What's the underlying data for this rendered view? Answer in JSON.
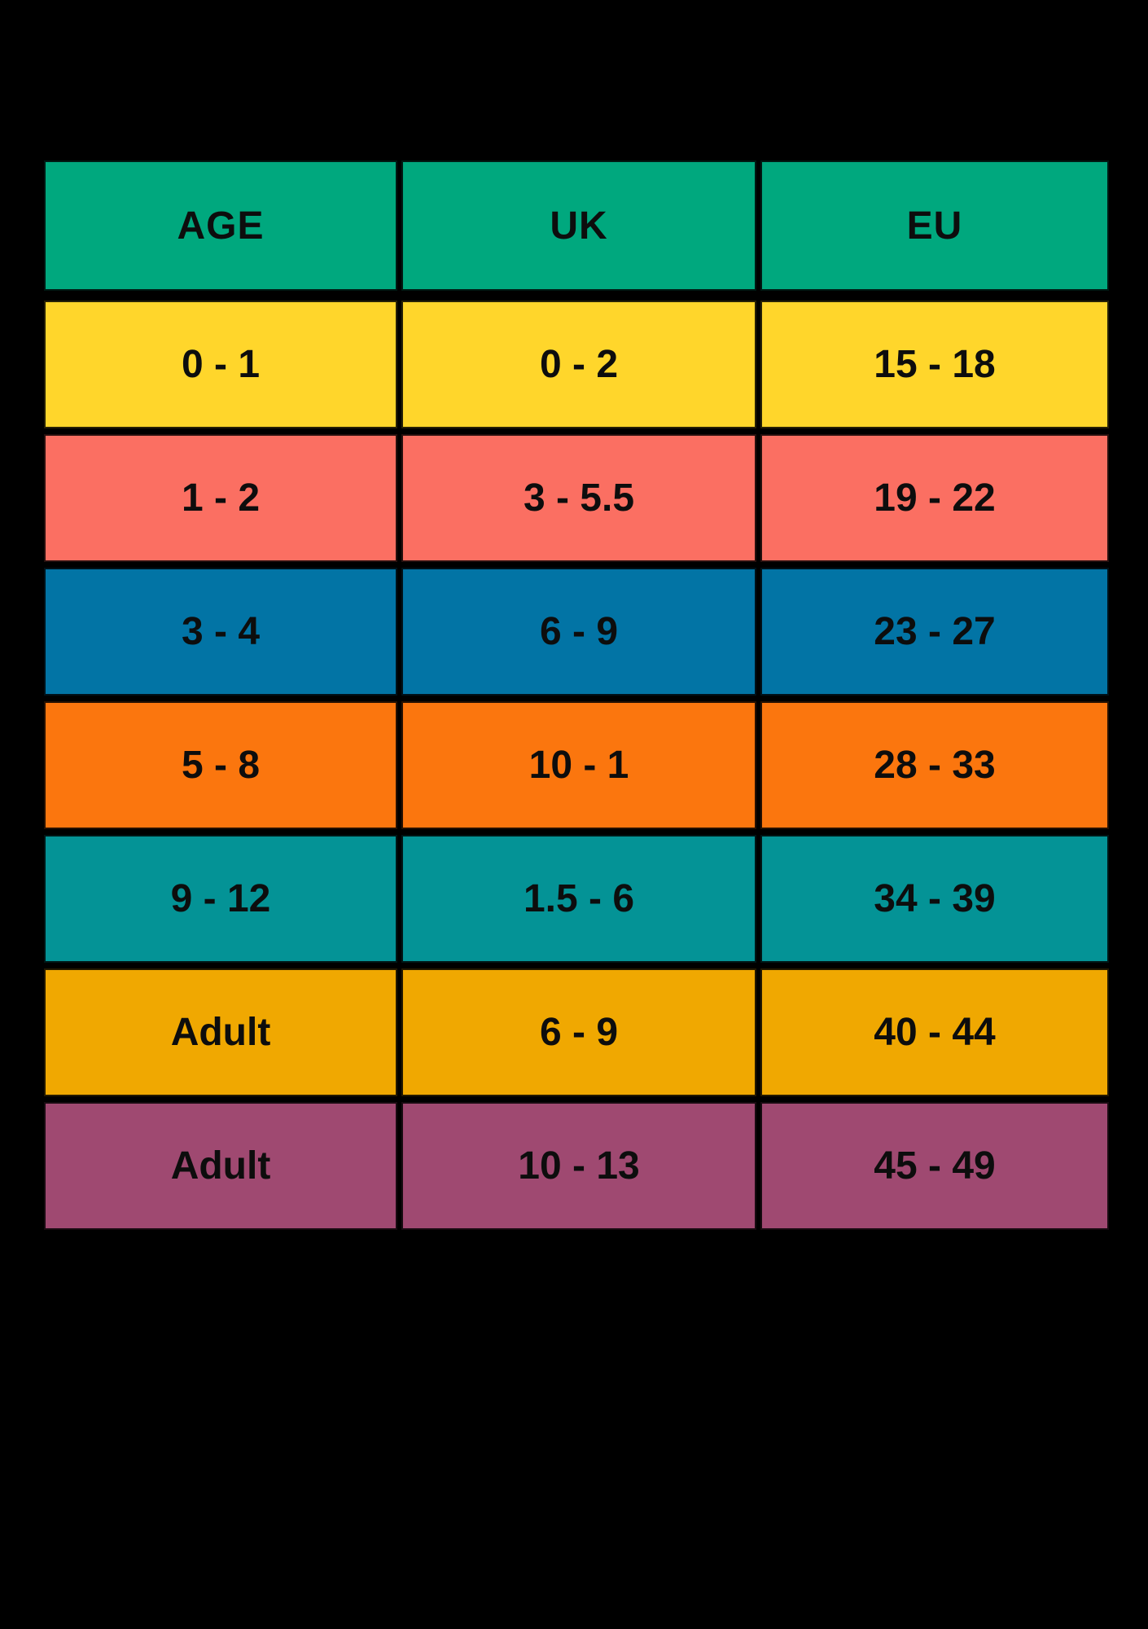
{
  "page": {
    "background_color": "#000000",
    "text_color": "#0d0d0d"
  },
  "chart_data": {
    "type": "table",
    "title": "",
    "columns": [
      "AGE",
      "UK",
      "EU"
    ],
    "rows": [
      [
        "0 - 1",
        "0 - 2",
        "15 - 18"
      ],
      [
        "1 - 2",
        "3 - 5.5",
        "19 - 22"
      ],
      [
        "3 - 4",
        "6 - 9",
        "23 - 27"
      ],
      [
        "5 - 8",
        "10 - 1",
        "28 - 33"
      ],
      [
        "9 - 12",
        "1.5 - 6",
        "34 - 39"
      ],
      [
        "Adult",
        "6 - 9",
        "40 - 44"
      ],
      [
        "Adult",
        "10 - 13",
        "45 - 49"
      ]
    ],
    "header_color": "#00A87E",
    "row_colors": [
      "#FFD62B",
      "#FB6F62",
      "#0274A5",
      "#FB760E",
      "#049396",
      "#F0A801",
      "#9F4971"
    ],
    "grid": "black gaps between all cells",
    "legend_position": "none"
  }
}
